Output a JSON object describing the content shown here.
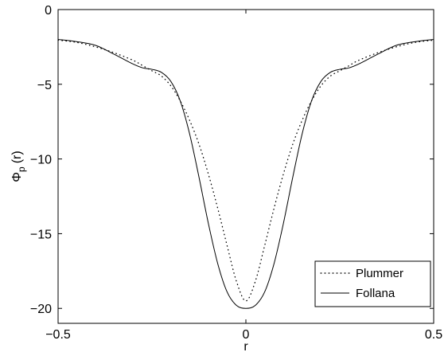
{
  "chart_data": {
    "type": "line",
    "title": "",
    "xlabel": "r",
    "ylabel_main": "Φ",
    "ylabel_sub": "p",
    "ylabel_tail": "(r)",
    "xlim": [
      -0.5,
      0.5
    ],
    "ylim": [
      -21,
      0
    ],
    "x_ticks": [
      -0.5,
      0,
      0.5
    ],
    "x_tick_labels": [
      "−0.5",
      "0",
      "0.5"
    ],
    "y_ticks": [
      0,
      -5,
      -10,
      -15,
      -20
    ],
    "y_tick_labels": [
      "0",
      "−5",
      "−10",
      "−15",
      "−20"
    ],
    "grid": false,
    "legend_position": "bottom-right",
    "series": [
      {
        "name": "Plummer",
        "style": "dotted",
        "color": "#000000",
        "x": [
          -0.5,
          -0.45,
          -0.4,
          -0.35,
          -0.3,
          -0.275,
          -0.25,
          -0.225,
          -0.2,
          -0.175,
          -0.15,
          -0.125,
          -0.1,
          -0.075,
          -0.05,
          -0.025,
          0,
          0.025,
          0.05,
          0.075,
          0.1,
          0.125,
          0.15,
          0.175,
          0.2,
          0.225,
          0.25,
          0.275,
          0.3,
          0.35,
          0.4,
          0.45,
          0.5
        ],
        "y": [
          -2.05,
          -2.2,
          -2.5,
          -2.9,
          -3.4,
          -3.75,
          -4.1,
          -4.45,
          -5.1,
          -6.1,
          -7.4,
          -9.0,
          -11.0,
          -13.3,
          -15.8,
          -18.2,
          -19.5,
          -18.2,
          -15.8,
          -13.3,
          -11.0,
          -9.0,
          -7.4,
          -6.1,
          -5.1,
          -4.45,
          -4.1,
          -3.75,
          -3.4,
          -2.9,
          -2.5,
          -2.2,
          -2.05
        ]
      },
      {
        "name": "Follana",
        "style": "solid",
        "color": "#000000",
        "x": [
          -0.5,
          -0.45,
          -0.4,
          -0.35,
          -0.3,
          -0.275,
          -0.25,
          -0.225,
          -0.2,
          -0.175,
          -0.15,
          -0.125,
          -0.1,
          -0.075,
          -0.05,
          -0.025,
          0,
          0.025,
          0.05,
          0.075,
          0.1,
          0.125,
          0.15,
          0.175,
          0.2,
          0.225,
          0.25,
          0.275,
          0.3,
          0.35,
          0.4,
          0.45,
          0.5
        ],
        "y": [
          -2.0,
          -2.15,
          -2.4,
          -3.0,
          -3.65,
          -3.9,
          -4.0,
          -4.2,
          -4.8,
          -6.1,
          -8.3,
          -11.2,
          -14.3,
          -17.0,
          -18.9,
          -19.8,
          -20.0,
          -19.8,
          -18.9,
          -17.0,
          -14.3,
          -11.2,
          -8.3,
          -6.1,
          -4.8,
          -4.2,
          -4.0,
          -3.9,
          -3.65,
          -3.0,
          -2.4,
          -2.15,
          -2.0
        ]
      }
    ]
  }
}
